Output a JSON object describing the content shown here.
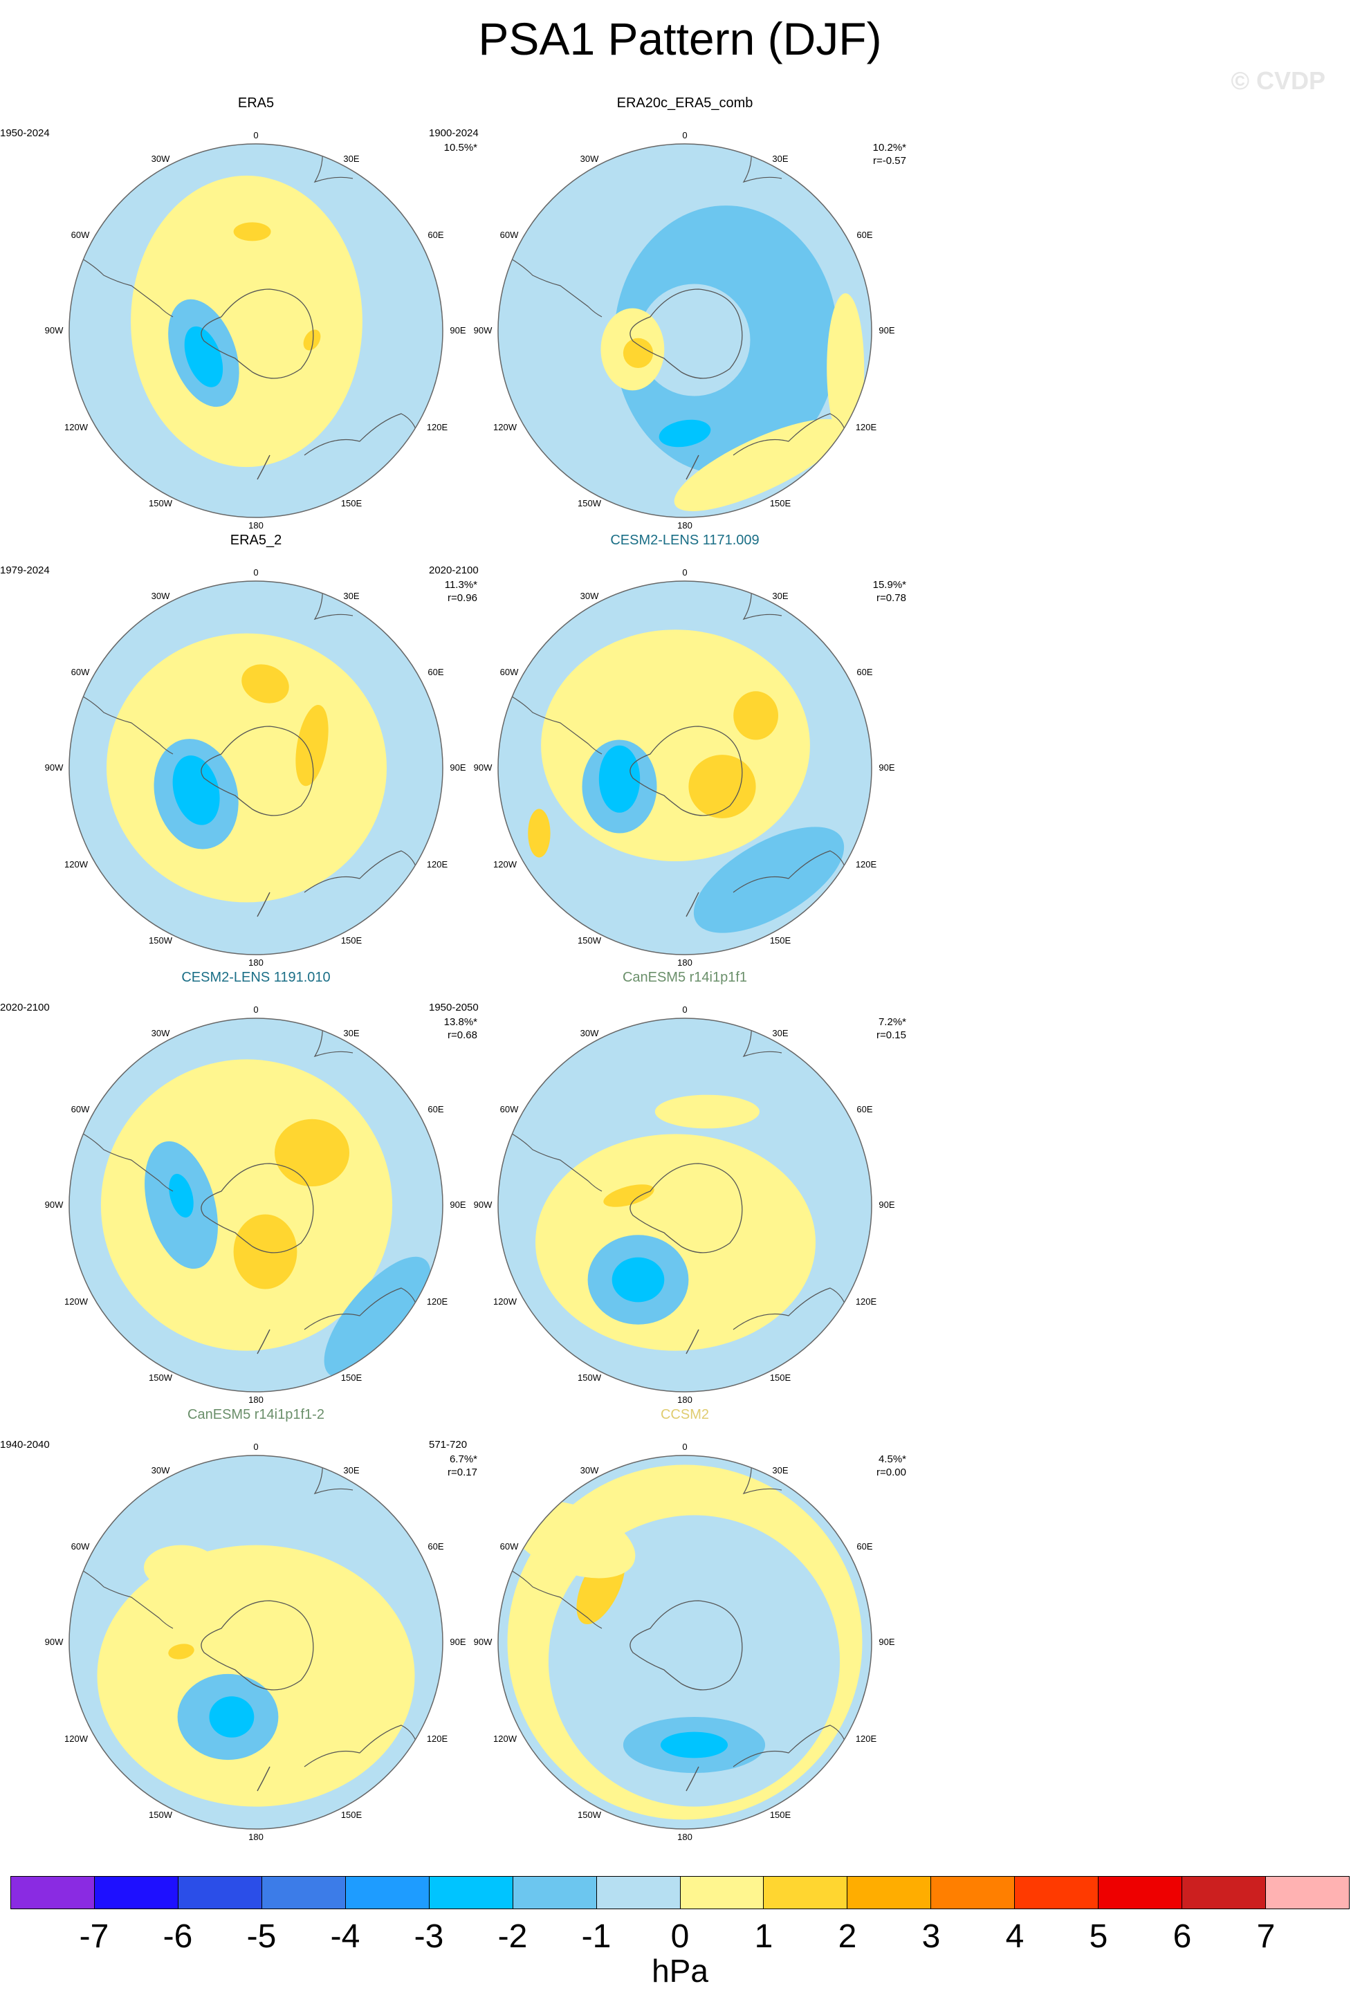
{
  "header": {
    "title": "PSA1 Pattern (DJF)",
    "watermark": "© CVDP"
  },
  "map_common": {
    "labels": {
      "n": "0",
      "s": "180",
      "w": "90W",
      "e": "90E",
      "nw": "30W",
      "ne": "30E",
      "wnw": "60W",
      "ene": "60E",
      "wsw": "120W",
      "ese": "120E",
      "sw": "150W",
      "se": "150E"
    }
  },
  "panels": [
    {
      "name": "ERA5",
      "name_color": "#000000",
      "period": "1950-2024",
      "pct": "10.5%*",
      "r": ""
    },
    {
      "name": "ERA20c_ERA5_comb",
      "name_color": "#000000",
      "period": "1900-2024",
      "pct": "10.2%*",
      "r": "r=-0.57"
    },
    {
      "name": "ERA5_2",
      "name_color": "#000000",
      "period": "1979-2024",
      "pct": "11.3%*",
      "r": "r=0.96"
    },
    {
      "name": "CESM2-LENS 1171.009",
      "name_color": "#1a6e86",
      "period": "2020-2100",
      "pct": "15.9%*",
      "r": "r=0.78"
    },
    {
      "name": "CESM2-LENS 1191.010",
      "name_color": "#1a6e86",
      "period": "2020-2100",
      "pct": "13.8%*",
      "r": "r=0.68"
    },
    {
      "name": "CanESM5 r14i1p1f1",
      "name_color": "#6a8f6a",
      "period": "1950-2050",
      "pct": "7.2%*",
      "r": "r=0.15"
    },
    {
      "name": "CanESM5 r14i1p1f1-2",
      "name_color": "#6a8f6a",
      "period": "1940-2040",
      "pct": "6.7%*",
      "r": "r=0.17"
    },
    {
      "name": "CCSM2",
      "name_color": "#e0cc70",
      "period": "571-720",
      "pct": "4.5%*",
      "r": "r=0.00"
    }
  ],
  "colorbar": {
    "colors": [
      "#8a2be2",
      "#1e10ff",
      "#2b4ee8",
      "#3c7ce8",
      "#1e9cff",
      "#00c4ff",
      "#6cc6ef",
      "#b6dff2",
      "#fff68f",
      "#ffd630",
      "#ffad00",
      "#ff7f00",
      "#ff3a00",
      "#ee0000",
      "#cc1f1f",
      "#ffb2b2"
    ],
    "ticks": [
      "-7",
      "-6",
      "-5",
      "-4",
      "-3",
      "-2",
      "-1",
      "0",
      "1",
      "2",
      "3",
      "4",
      "5",
      "6",
      "7"
    ],
    "units": "hPa"
  }
}
